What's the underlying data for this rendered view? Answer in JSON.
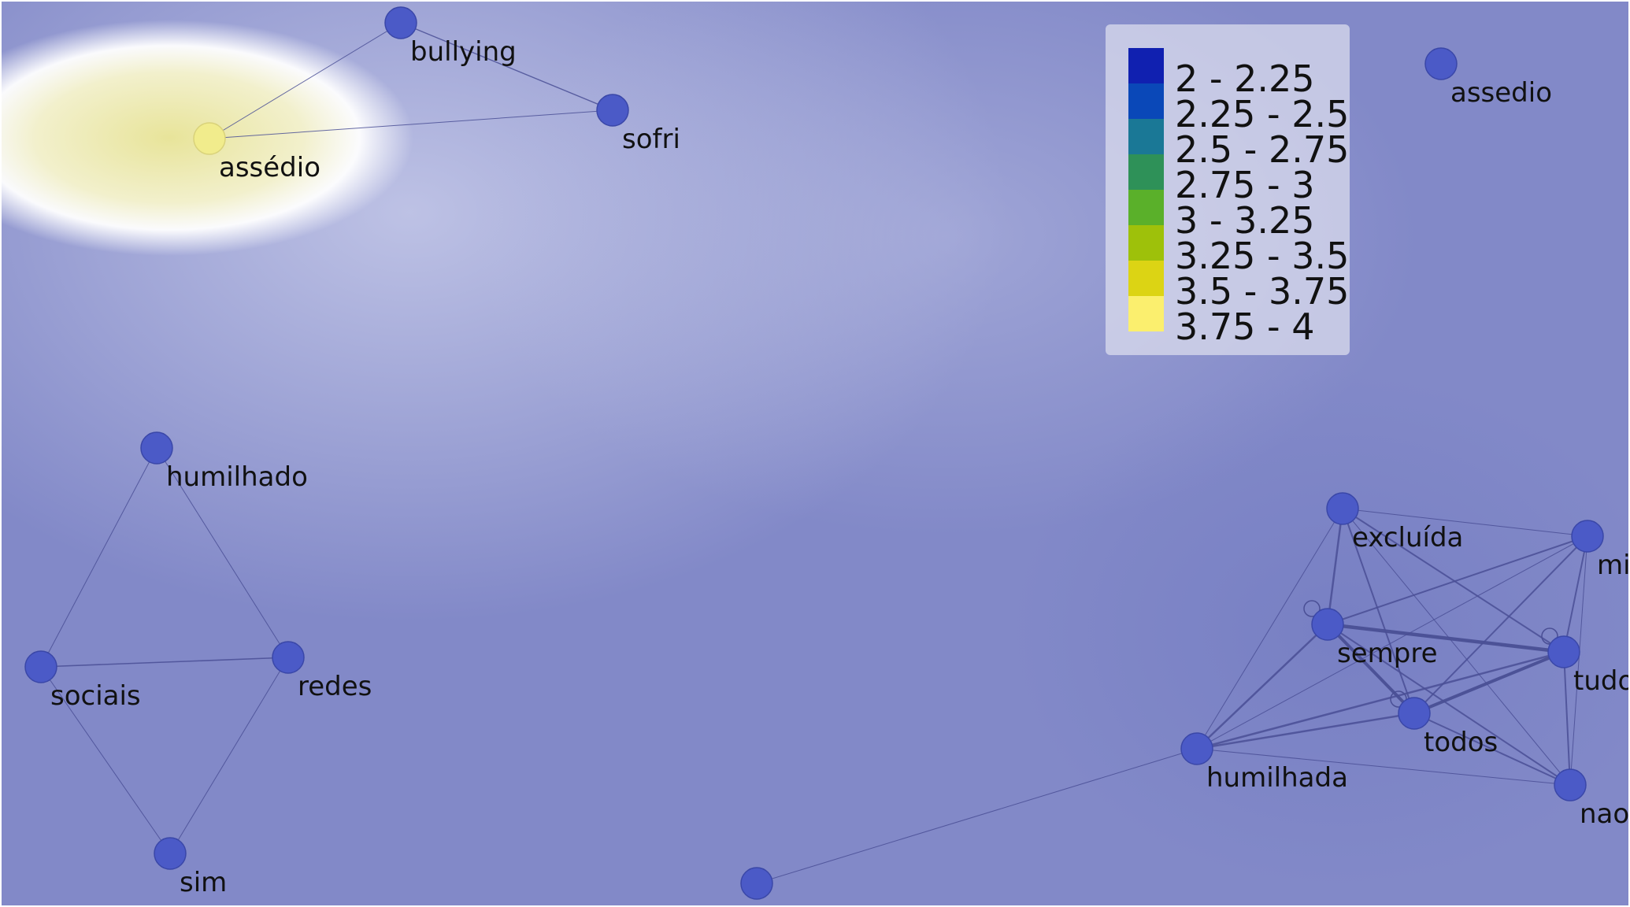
{
  "graph": {
    "nodes": [
      {
        "id": "bullying",
        "label": "bullying",
        "density": "2 - 2.25"
      },
      {
        "id": "sofri",
        "label": "sofri",
        "density": "2 - 2.25"
      },
      {
        "id": "assédio",
        "label": "assédio",
        "density": "3.75 - 4"
      },
      {
        "id": "assedio",
        "label": "assedio",
        "density": "2 - 2.25"
      },
      {
        "id": "humilhado",
        "label": "humilhado",
        "density": "2 - 2.25"
      },
      {
        "id": "sociais",
        "label": "sociais",
        "density": "2 - 2.25"
      },
      {
        "id": "redes",
        "label": "redes",
        "density": "2 - 2.25"
      },
      {
        "id": "sim",
        "label": "sim",
        "density": "2 - 2.25"
      },
      {
        "id": "excluída",
        "label": "excluída",
        "density": "2 - 2.25"
      },
      {
        "id": "mi",
        "label": "mi",
        "density": "2 - 2.25"
      },
      {
        "id": "sempre",
        "label": "sempre",
        "density": "2 - 2.25"
      },
      {
        "id": "tudo",
        "label": "tudo",
        "density": "2 - 2.25"
      },
      {
        "id": "todos",
        "label": "todos",
        "density": "2 - 2.25"
      },
      {
        "id": "humilhada",
        "label": "humilhada",
        "density": "2 - 2.25"
      },
      {
        "id": "nao",
        "label": "nao",
        "density": "2 - 2.25"
      },
      {
        "id": "bottom",
        "label": "",
        "density": "2 - 2.25"
      }
    ],
    "edges": [
      {
        "source": "assédio",
        "target": "bullying",
        "weight": 1
      },
      {
        "source": "bullying",
        "target": "sofri",
        "weight": 1.4
      },
      {
        "source": "assédio",
        "target": "sofri",
        "weight": 1
      },
      {
        "source": "humilhado",
        "target": "sociais",
        "weight": 1
      },
      {
        "source": "humilhado",
        "target": "redes",
        "weight": 1
      },
      {
        "source": "sociais",
        "target": "redes",
        "weight": 1.6
      },
      {
        "source": "sociais",
        "target": "sim",
        "weight": 1
      },
      {
        "source": "redes",
        "target": "sim",
        "weight": 1
      },
      {
        "source": "excluída",
        "target": "mi",
        "weight": 1
      },
      {
        "source": "excluída",
        "target": "sempre",
        "weight": 2.5
      },
      {
        "source": "excluída",
        "target": "tudo",
        "weight": 2
      },
      {
        "source": "excluída",
        "target": "todos",
        "weight": 2
      },
      {
        "source": "excluída",
        "target": "humilhada",
        "weight": 1
      },
      {
        "source": "excluída",
        "target": "nao",
        "weight": 1
      },
      {
        "source": "mi",
        "target": "sempre",
        "weight": 2
      },
      {
        "source": "mi",
        "target": "tudo",
        "weight": 2
      },
      {
        "source": "mi",
        "target": "todos",
        "weight": 2
      },
      {
        "source": "mi",
        "target": "humilhada",
        "weight": 1
      },
      {
        "source": "mi",
        "target": "nao",
        "weight": 1
      },
      {
        "source": "sempre",
        "target": "tudo",
        "weight": 4.5
      },
      {
        "source": "sempre",
        "target": "todos",
        "weight": 4
      },
      {
        "source": "sempre",
        "target": "humilhada",
        "weight": 2.5
      },
      {
        "source": "sempre",
        "target": "nao",
        "weight": 2
      },
      {
        "source": "tudo",
        "target": "todos",
        "weight": 4
      },
      {
        "source": "tudo",
        "target": "humilhada",
        "weight": 2.5
      },
      {
        "source": "tudo",
        "target": "nao",
        "weight": 2
      },
      {
        "source": "todos",
        "target": "humilhada",
        "weight": 2.5
      },
      {
        "source": "todos",
        "target": "nao",
        "weight": 2
      },
      {
        "source": "humilhada",
        "target": "nao",
        "weight": 1
      },
      {
        "source": "humilhada",
        "target": "bottom",
        "weight": 1
      }
    ],
    "self_loops": [
      "sempre",
      "tudo",
      "todos"
    ]
  },
  "legend": {
    "items": [
      {
        "label": "2 - 2.25",
        "color": "#1020b0"
      },
      {
        "label": "2.25 - 2.5",
        "color": "#0a48b8"
      },
      {
        "label": "2.5 - 2.75",
        "color": "#1a7896"
      },
      {
        "label": "2.75 - 3",
        "color": "#2e9158"
      },
      {
        "label": "3 - 3.25",
        "color": "#5ab02a"
      },
      {
        "label": "3.25 - 3.5",
        "color": "#9ec10a"
      },
      {
        "label": "3.5 - 3.75",
        "color": "#dcd414"
      },
      {
        "label": "3.75 - 4",
        "color": "#fbef6e"
      }
    ]
  },
  "colors": {
    "background": "#8289c8",
    "node": "#4b5ac7",
    "hot_node": "#f1ec8c",
    "edge": "#4a4f95"
  }
}
